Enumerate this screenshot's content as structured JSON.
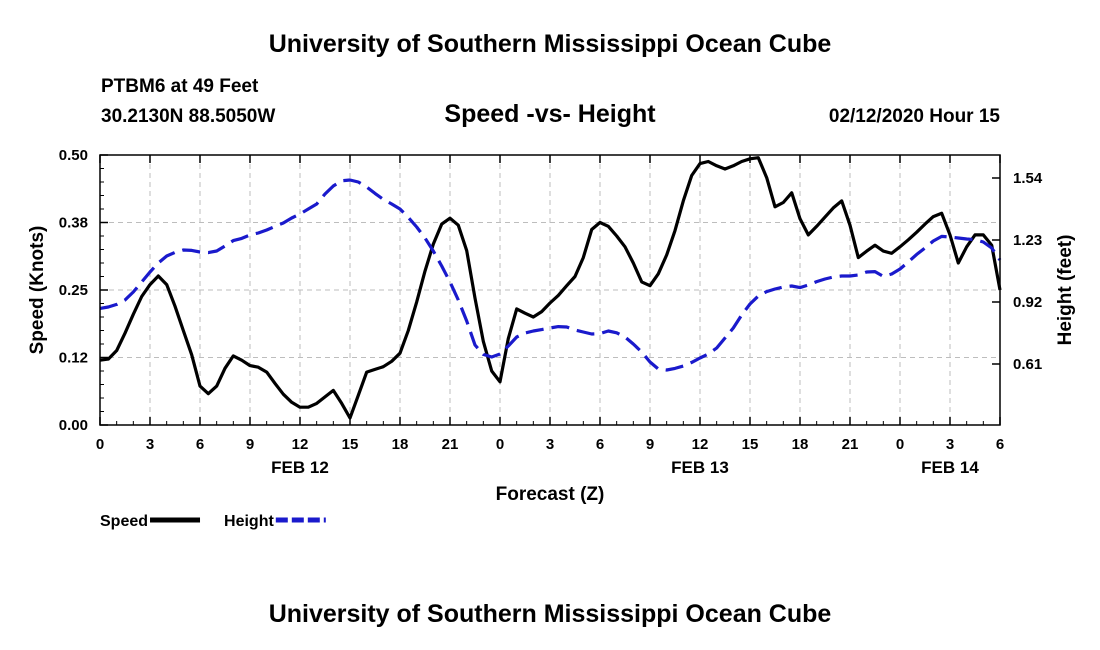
{
  "header": {
    "title": "University of Southern Mississippi Ocean Cube",
    "station": "PTBM6 at 49 Feet",
    "coords": "30.2130N 88.5050W",
    "chart_title": "Speed -vs- Height",
    "datetime": "02/12/2020 Hour 15"
  },
  "footer": {
    "title": "University of Southern Mississippi Ocean Cube"
  },
  "chart_data": {
    "type": "line",
    "title": "Speed -vs- Height",
    "xlabel": "Forecast (Z)",
    "ylabel": "Speed (Knots)",
    "y2label": "Height (feet)",
    "x_range": [
      0,
      54
    ],
    "ylim": [
      0,
      0.5
    ],
    "y2lim": [
      0.305,
      1.655
    ],
    "x_ticks": [
      {
        "x": 0,
        "label": "0"
      },
      {
        "x": 3,
        "label": "3"
      },
      {
        "x": 6,
        "label": "6"
      },
      {
        "x": 9,
        "label": "9"
      },
      {
        "x": 12,
        "label": "12"
      },
      {
        "x": 15,
        "label": "15"
      },
      {
        "x": 18,
        "label": "18"
      },
      {
        "x": 21,
        "label": "21"
      },
      {
        "x": 24,
        "label": "0"
      },
      {
        "x": 27,
        "label": "3"
      },
      {
        "x": 30,
        "label": "6"
      },
      {
        "x": 33,
        "label": "9"
      },
      {
        "x": 36,
        "label": "12"
      },
      {
        "x": 39,
        "label": "15"
      },
      {
        "x": 42,
        "label": "18"
      },
      {
        "x": 45,
        "label": "21"
      },
      {
        "x": 48,
        "label": "0"
      },
      {
        "x": 51,
        "label": "3"
      },
      {
        "x": 54,
        "label": "6"
      }
    ],
    "date_labels": [
      {
        "x": 12,
        "label": "FEB 12"
      },
      {
        "x": 36,
        "label": "FEB 13"
      },
      {
        "x": 51,
        "label": "FEB 14"
      }
    ],
    "y_ticks": [
      {
        "v": 0.0,
        "label": "0.00"
      },
      {
        "v": 0.125,
        "label": "0.12"
      },
      {
        "v": 0.25,
        "label": "0.25"
      },
      {
        "v": 0.375,
        "label": "0.38"
      },
      {
        "v": 0.5,
        "label": "0.50"
      }
    ],
    "y2_ticks": [
      {
        "v": 0.61,
        "label": "0.61"
      },
      {
        "v": 0.92,
        "label": "0.92"
      },
      {
        "v": 1.23,
        "label": "1.23"
      },
      {
        "v": 1.54,
        "label": "1.54"
      }
    ],
    "series": [
      {
        "name": "Speed",
        "axis": "left",
        "color": "#000000",
        "style": "solid",
        "points": [
          [
            0,
            0.12
          ],
          [
            0.5,
            0.122
          ],
          [
            1,
            0.138
          ],
          [
            1.5,
            0.17
          ],
          [
            2,
            0.205
          ],
          [
            2.5,
            0.238
          ],
          [
            3,
            0.26
          ],
          [
            3.5,
            0.276
          ],
          [
            4,
            0.26
          ],
          [
            4.5,
            0.22
          ],
          [
            5,
            0.175
          ],
          [
            5.5,
            0.13
          ],
          [
            6,
            0.072
          ],
          [
            6.5,
            0.058
          ],
          [
            7,
            0.072
          ],
          [
            7.5,
            0.105
          ],
          [
            8,
            0.128
          ],
          [
            8.5,
            0.12
          ],
          [
            9,
            0.11
          ],
          [
            9.5,
            0.107
          ],
          [
            10,
            0.098
          ],
          [
            10.5,
            0.077
          ],
          [
            11,
            0.057
          ],
          [
            11.5,
            0.042
          ],
          [
            12,
            0.033
          ],
          [
            12.5,
            0.033
          ],
          [
            13,
            0.04
          ],
          [
            13.5,
            0.052
          ],
          [
            14,
            0.064
          ],
          [
            14.5,
            0.04
          ],
          [
            15,
            0.013
          ],
          [
            15.5,
            0.055
          ],
          [
            16,
            0.098
          ],
          [
            16.5,
            0.103
          ],
          [
            17,
            0.108
          ],
          [
            17.5,
            0.118
          ],
          [
            18,
            0.133
          ],
          [
            18.5,
            0.175
          ],
          [
            19,
            0.228
          ],
          [
            19.5,
            0.285
          ],
          [
            20,
            0.335
          ],
          [
            20.5,
            0.372
          ],
          [
            21,
            0.383
          ],
          [
            21.5,
            0.37
          ],
          [
            22,
            0.323
          ],
          [
            22.5,
            0.235
          ],
          [
            23,
            0.155
          ],
          [
            23.5,
            0.1
          ],
          [
            24,
            0.08
          ],
          [
            24.5,
            0.16
          ],
          [
            25,
            0.215
          ],
          [
            25.5,
            0.207
          ],
          [
            26,
            0.2
          ],
          [
            26.5,
            0.21
          ],
          [
            27,
            0.226
          ],
          [
            27.5,
            0.24
          ],
          [
            28,
            0.258
          ],
          [
            28.5,
            0.275
          ],
          [
            29,
            0.31
          ],
          [
            29.5,
            0.362
          ],
          [
            30,
            0.375
          ],
          [
            30.5,
            0.368
          ],
          [
            31,
            0.35
          ],
          [
            31.5,
            0.33
          ],
          [
            32,
            0.3
          ],
          [
            32.5,
            0.265
          ],
          [
            33,
            0.258
          ],
          [
            33.5,
            0.28
          ],
          [
            34,
            0.315
          ],
          [
            34.5,
            0.36
          ],
          [
            35,
            0.415
          ],
          [
            35.5,
            0.462
          ],
          [
            36,
            0.484
          ],
          [
            36.5,
            0.488
          ],
          [
            37,
            0.48
          ],
          [
            37.5,
            0.474
          ],
          [
            38,
            0.48
          ],
          [
            38.5,
            0.488
          ],
          [
            39,
            0.493
          ],
          [
            39.5,
            0.495
          ],
          [
            40,
            0.458
          ],
          [
            40.5,
            0.404
          ],
          [
            41,
            0.412
          ],
          [
            41.5,
            0.43
          ],
          [
            42,
            0.382
          ],
          [
            42.5,
            0.352
          ],
          [
            43,
            0.368
          ],
          [
            43.5,
            0.385
          ],
          [
            44,
            0.402
          ],
          [
            44.5,
            0.415
          ],
          [
            45,
            0.37
          ],
          [
            45.5,
            0.31
          ],
          [
            46,
            0.322
          ],
          [
            46.5,
            0.333
          ],
          [
            47,
            0.322
          ],
          [
            47.5,
            0.318
          ],
          [
            48,
            0.33
          ],
          [
            48.5,
            0.343
          ],
          [
            49,
            0.357
          ],
          [
            49.5,
            0.372
          ],
          [
            50,
            0.386
          ],
          [
            50.5,
            0.392
          ],
          [
            51,
            0.352
          ],
          [
            51.5,
            0.3
          ],
          [
            52,
            0.33
          ],
          [
            52.5,
            0.352
          ],
          [
            53,
            0.352
          ],
          [
            53.5,
            0.333
          ],
          [
            54,
            0.25
          ]
        ]
      },
      {
        "name": "Height",
        "axis": "right",
        "color": "#1a1acc",
        "style": "dashed",
        "points": [
          [
            0,
            0.888
          ],
          [
            0.5,
            0.895
          ],
          [
            1,
            0.908
          ],
          [
            1.5,
            0.93
          ],
          [
            2,
            0.97
          ],
          [
            2.5,
            1.02
          ],
          [
            3,
            1.07
          ],
          [
            3.5,
            1.115
          ],
          [
            4,
            1.15
          ],
          [
            4.5,
            1.168
          ],
          [
            5,
            1.18
          ],
          [
            5.5,
            1.178
          ],
          [
            6,
            1.17
          ],
          [
            6.5,
            1.167
          ],
          [
            7,
            1.175
          ],
          [
            7.5,
            1.2
          ],
          [
            8,
            1.227
          ],
          [
            8.5,
            1.238
          ],
          [
            9,
            1.255
          ],
          [
            9.5,
            1.265
          ],
          [
            10,
            1.28
          ],
          [
            10.5,
            1.298
          ],
          [
            11,
            1.315
          ],
          [
            11.5,
            1.34
          ],
          [
            12,
            1.36
          ],
          [
            12.5,
            1.385
          ],
          [
            13,
            1.41
          ],
          [
            13.5,
            1.46
          ],
          [
            14,
            1.5
          ],
          [
            14.5,
            1.526
          ],
          [
            15,
            1.53
          ],
          [
            15.5,
            1.52
          ],
          [
            16,
            1.495
          ],
          [
            16.5,
            1.463
          ],
          [
            17,
            1.433
          ],
          [
            17.5,
            1.41
          ],
          [
            18,
            1.385
          ],
          [
            18.5,
            1.343
          ],
          [
            19,
            1.295
          ],
          [
            19.5,
            1.24
          ],
          [
            20,
            1.175
          ],
          [
            20.5,
            1.1
          ],
          [
            21,
            1.02
          ],
          [
            21.5,
            0.93
          ],
          [
            22,
            0.825
          ],
          [
            22.5,
            0.705
          ],
          [
            23,
            0.658
          ],
          [
            23.5,
            0.645
          ],
          [
            24,
            0.66
          ],
          [
            24.5,
            0.7
          ],
          [
            25,
            0.745
          ],
          [
            25.5,
            0.765
          ],
          [
            26,
            0.775
          ],
          [
            26.5,
            0.782
          ],
          [
            27,
            0.79
          ],
          [
            27.5,
            0.797
          ],
          [
            28,
            0.795
          ],
          [
            28.5,
            0.78
          ],
          [
            29,
            0.77
          ],
          [
            29.5,
            0.76
          ],
          [
            30,
            0.762
          ],
          [
            30.5,
            0.775
          ],
          [
            31,
            0.766
          ],
          [
            31.5,
            0.745
          ],
          [
            32,
            0.71
          ],
          [
            32.5,
            0.67
          ],
          [
            33,
            0.62
          ],
          [
            33.5,
            0.585
          ],
          [
            34,
            0.58
          ],
          [
            34.5,
            0.588
          ],
          [
            35,
            0.6
          ],
          [
            35.5,
            0.618
          ],
          [
            36,
            0.64
          ],
          [
            36.5,
            0.66
          ],
          [
            37,
            0.69
          ],
          [
            37.5,
            0.74
          ],
          [
            38,
            0.79
          ],
          [
            38.5,
            0.855
          ],
          [
            39,
            0.91
          ],
          [
            39.5,
            0.95
          ],
          [
            40,
            0.972
          ],
          [
            40.5,
            0.985
          ],
          [
            41,
            0.995
          ],
          [
            41.5,
            1.0
          ],
          [
            42,
            0.992
          ],
          [
            42.5,
            1.005
          ],
          [
            43,
            1.022
          ],
          [
            43.5,
            1.035
          ],
          [
            44,
            1.045
          ],
          [
            44.5,
            1.05
          ],
          [
            45,
            1.05
          ],
          [
            45.5,
            1.055
          ],
          [
            46,
            1.07
          ],
          [
            46.5,
            1.072
          ],
          [
            47,
            1.048
          ],
          [
            47.5,
            1.06
          ],
          [
            48,
            1.085
          ],
          [
            48.5,
            1.12
          ],
          [
            49,
            1.158
          ],
          [
            49.5,
            1.19
          ],
          [
            50,
            1.225
          ],
          [
            50.5,
            1.248
          ],
          [
            51,
            1.245
          ],
          [
            51.5,
            1.24
          ],
          [
            52,
            1.235
          ],
          [
            52.5,
            1.232
          ],
          [
            53,
            1.22
          ],
          [
            53.5,
            1.19
          ],
          [
            54,
            1.13
          ]
        ]
      }
    ],
    "legend": [
      {
        "label": "Speed",
        "color": "#000000",
        "style": "solid"
      },
      {
        "label": "Height",
        "color": "#1a1acc",
        "style": "dashed"
      }
    ]
  }
}
